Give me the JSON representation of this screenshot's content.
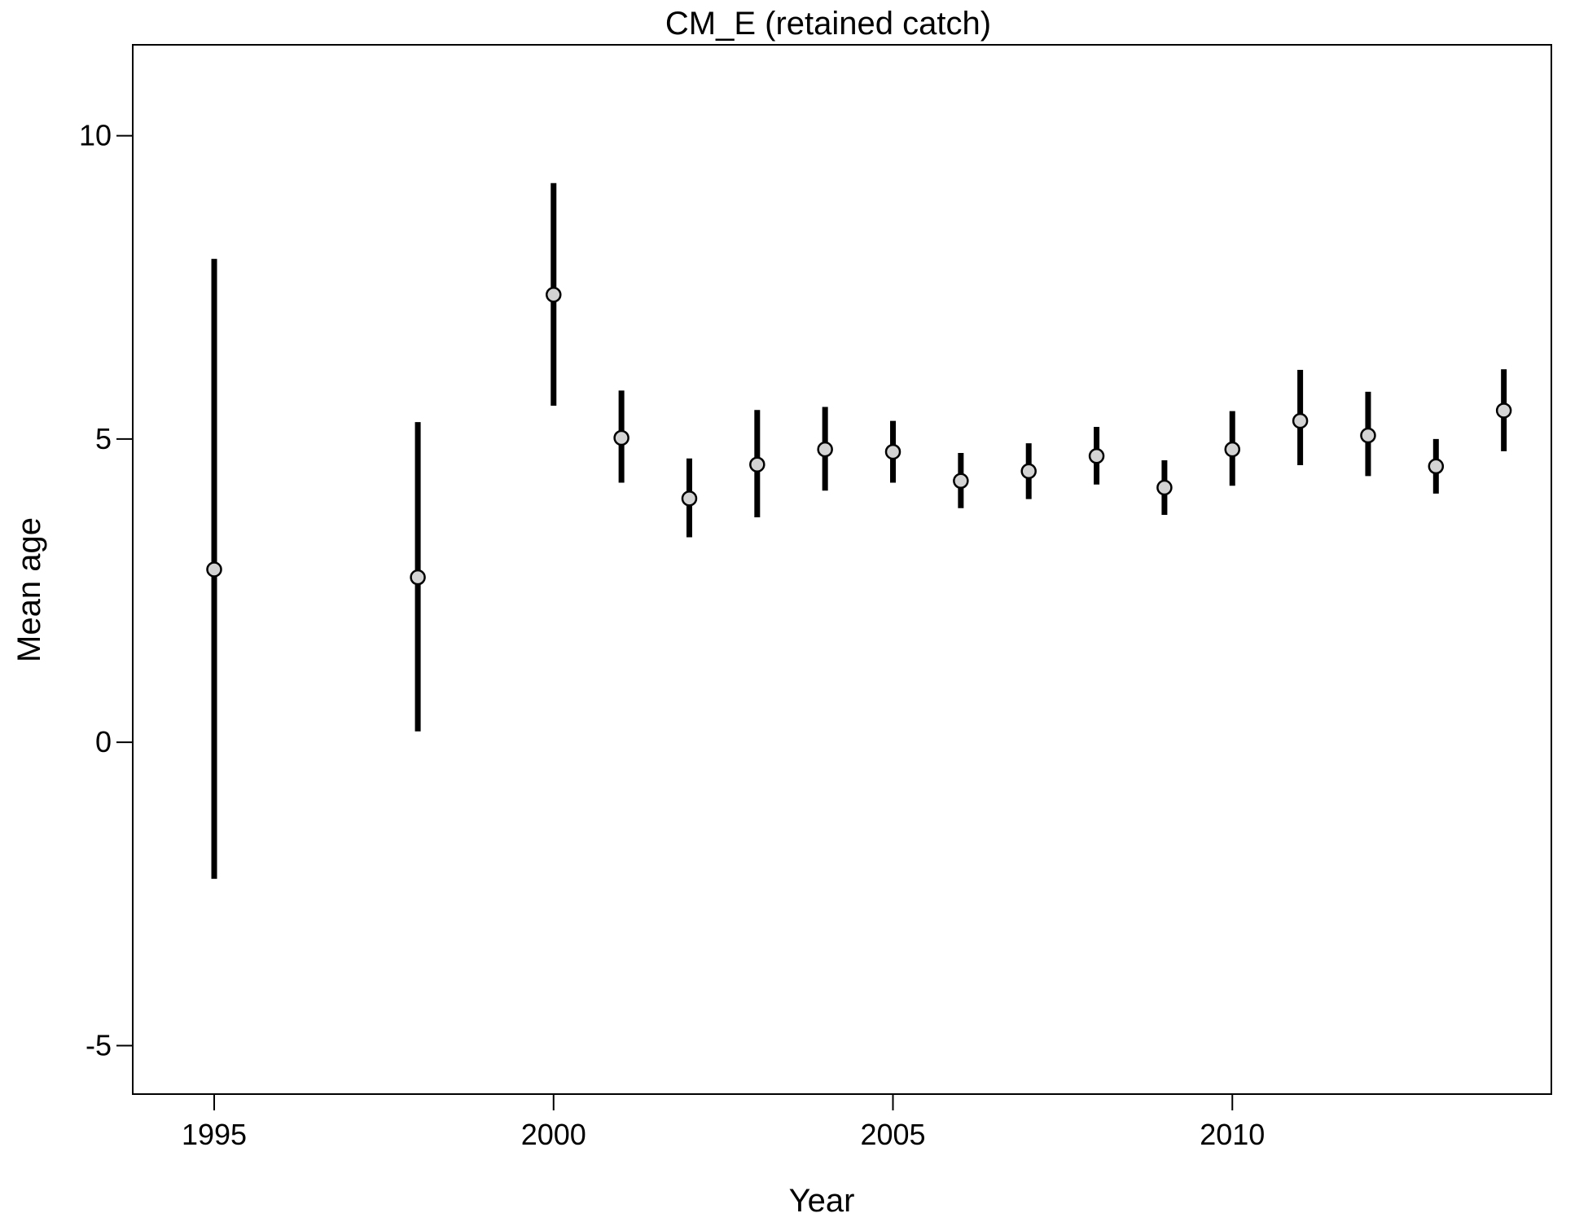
{
  "chart_data": {
    "type": "scatter",
    "title": "CM_E (retained catch)",
    "xlabel": "Year",
    "ylabel": "Mean age",
    "xlim": [
      1993.8,
      2014.7
    ],
    "ylim": [
      -5.8,
      11.5
    ],
    "x_ticks": [
      1995,
      2000,
      2005,
      2010
    ],
    "y_ticks": [
      -5,
      0,
      5,
      10
    ],
    "grid": false,
    "legend": "none",
    "point_fill": "#d3d3d3",
    "point_stroke": "#000000",
    "errorbar_color": "#000000",
    "series": [
      {
        "x": [
          1995,
          1998,
          2000,
          2001,
          2002,
          2003,
          2004,
          2005,
          2006,
          2007,
          2008,
          2009,
          2010,
          2011,
          2012,
          2013,
          2014
        ],
        "y": [
          2.85,
          2.72,
          7.38,
          5.02,
          4.02,
          4.58,
          4.83,
          4.79,
          4.31,
          4.47,
          4.72,
          4.2,
          4.83,
          5.3,
          5.06,
          4.55,
          5.47
        ],
        "lower": [
          -2.25,
          0.18,
          5.55,
          4.28,
          3.38,
          3.71,
          4.15,
          4.28,
          3.86,
          4.01,
          4.25,
          3.75,
          4.23,
          4.57,
          4.39,
          4.1,
          4.8
        ],
        "upper": [
          7.97,
          5.28,
          9.22,
          5.8,
          4.68,
          5.48,
          5.53,
          5.3,
          4.77,
          4.93,
          5.2,
          4.65,
          5.46,
          6.14,
          5.78,
          5.0,
          6.15
        ]
      }
    ]
  }
}
